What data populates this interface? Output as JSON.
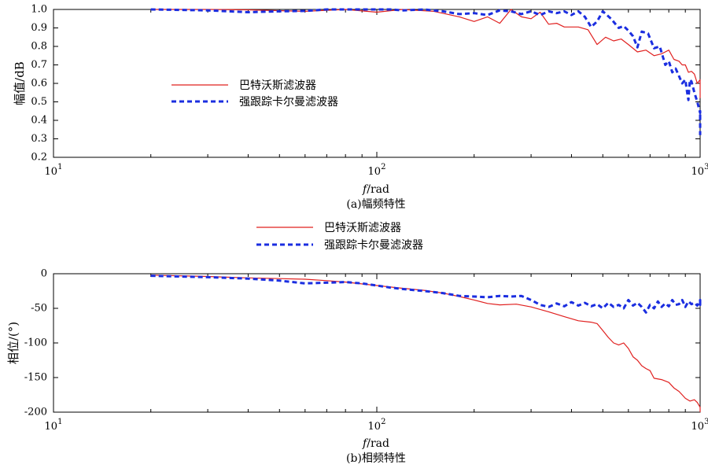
{
  "chart_data": [
    {
      "type": "line",
      "caption": "(a)幅频特性",
      "xlabel_italic": "f",
      "xlabel_unit": "/rad",
      "ylabel": "幅值/dB",
      "xscale": "log",
      "xlim": [
        10,
        1000
      ],
      "ylim": [
        0.2,
        1.0
      ],
      "xticks": [
        {
          "base": "10",
          "exp": "1"
        },
        {
          "base": "10",
          "exp": "2"
        },
        {
          "base": "10",
          "exp": "3"
        }
      ],
      "yticks": [
        "1.0",
        "0.9",
        "0.8",
        "0.7",
        "0.6",
        "0.5",
        "0.4",
        "0.3",
        "0.2"
      ],
      "legend_position": "center-left",
      "series": [
        {
          "name": "巴特沃斯滤波器",
          "color": "#e0201f",
          "style": "solid",
          "points": [
            [
              20,
              1.0
            ],
            [
              30,
              1.0
            ],
            [
              40,
              0.998
            ],
            [
              60,
              0.99
            ],
            [
              80,
              1.005
            ],
            [
              100,
              0.985
            ],
            [
              120,
              1.005
            ],
            [
              150,
              0.99
            ],
            [
              180,
              0.96
            ],
            [
              200,
              0.935
            ],
            [
              220,
              0.96
            ],
            [
              240,
              0.925
            ],
            [
              260,
              1.0
            ],
            [
              280,
              0.96
            ],
            [
              300,
              0.95
            ],
            [
              320,
              0.985
            ],
            [
              340,
              0.92
            ],
            [
              360,
              0.925
            ],
            [
              380,
              0.905
            ],
            [
              420,
              0.905
            ],
            [
              450,
              0.89
            ],
            [
              480,
              0.81
            ],
            [
              510,
              0.85
            ],
            [
              540,
              0.83
            ],
            [
              570,
              0.84
            ],
            [
              600,
              0.81
            ],
            [
              640,
              0.77
            ],
            [
              680,
              0.78
            ],
            [
              720,
              0.75
            ],
            [
              760,
              0.76
            ],
            [
              800,
              0.78
            ],
            [
              830,
              0.73
            ],
            [
              860,
              0.72
            ],
            [
              880,
              0.7
            ],
            [
              900,
              0.7
            ],
            [
              920,
              0.66
            ],
            [
              940,
              0.665
            ],
            [
              960,
              0.65
            ],
            [
              980,
              0.6
            ],
            [
              1000,
              0.62
            ],
            [
              1010,
              0.58
            ],
            [
              1030,
              0.6
            ],
            [
              1060,
              0.56
            ],
            [
              1080,
              0.62
            ],
            [
              1100,
              0.58
            ],
            [
              1130,
              0.6
            ],
            [
              1160,
              0.52
            ]
          ]
        },
        {
          "name": "强跟踪卡尔曼滤波器",
          "color": "#1b2ee0",
          "style": "dashed",
          "points": [
            [
              20,
              1.0
            ],
            [
              30,
              0.995
            ],
            [
              40,
              0.985
            ],
            [
              50,
              0.99
            ],
            [
              60,
              0.992
            ],
            [
              70,
              1.005
            ],
            [
              80,
              1.01
            ],
            [
              90,
              1.02
            ],
            [
              100,
              1.025
            ],
            [
              110,
              1.0
            ],
            [
              120,
              0.995
            ],
            [
              140,
              1.005
            ],
            [
              160,
              0.99
            ],
            [
              180,
              0.975
            ],
            [
              200,
              0.98
            ],
            [
              220,
              0.97
            ],
            [
              240,
              0.995
            ],
            [
              260,
              0.99
            ],
            [
              280,
              0.975
            ],
            [
              300,
              0.99
            ],
            [
              320,
              0.97
            ],
            [
              340,
              0.99
            ],
            [
              360,
              0.98
            ],
            [
              380,
              0.99
            ],
            [
              400,
              0.97
            ],
            [
              420,
              0.99
            ],
            [
              440,
              0.96
            ],
            [
              460,
              0.905
            ],
            [
              480,
              0.935
            ],
            [
              500,
              0.99
            ],
            [
              530,
              0.95
            ],
            [
              560,
              0.9
            ],
            [
              580,
              0.91
            ],
            [
              600,
              0.885
            ],
            [
              620,
              0.855
            ],
            [
              640,
              0.795
            ],
            [
              660,
              0.88
            ],
            [
              690,
              0.87
            ],
            [
              720,
              0.79
            ],
            [
              750,
              0.8
            ],
            [
              780,
              0.7
            ],
            [
              800,
              0.72
            ],
            [
              820,
              0.66
            ],
            [
              840,
              0.68
            ],
            [
              860,
              0.64
            ],
            [
              880,
              0.6
            ],
            [
              900,
              0.62
            ],
            [
              910,
              0.56
            ],
            [
              920,
              0.51
            ],
            [
              930,
              0.62
            ],
            [
              940,
              0.61
            ],
            [
              960,
              0.55
            ],
            [
              980,
              0.5
            ],
            [
              1000,
              0.44
            ],
            [
              1020,
              0.45
            ],
            [
              1050,
              0.41
            ],
            [
              1070,
              0.43
            ],
            [
              1090,
              0.42
            ],
            [
              1110,
              0.4
            ],
            [
              1130,
              0.42
            ],
            [
              1160,
              0.32
            ]
          ]
        }
      ]
    },
    {
      "type": "line",
      "caption": "(b)相频特性",
      "xlabel_italic": "f",
      "xlabel_unit": "/rad",
      "ylabel": "相位/(°)",
      "xscale": "log",
      "xlim": [
        10,
        1000
      ],
      "ylim": [
        -200,
        0
      ],
      "xticks": [
        {
          "base": "10",
          "exp": "1"
        },
        {
          "base": "10",
          "exp": "2"
        },
        {
          "base": "10",
          "exp": "3"
        }
      ],
      "yticks": [
        "0",
        "-50",
        "-100",
        "-150",
        "-200"
      ],
      "legend_position": "top-center",
      "series": [
        {
          "name": "巴特沃斯滤波器",
          "color": "#e0201f",
          "style": "solid",
          "points": [
            [
              20,
              -2
            ],
            [
              30,
              -4
            ],
            [
              40,
              -6
            ],
            [
              50,
              -7
            ],
            [
              60,
              -8
            ],
            [
              70,
              -10
            ],
            [
              80,
              -12
            ],
            [
              100,
              -17
            ],
            [
              120,
              -21
            ],
            [
              140,
              -24
            ],
            [
              160,
              -28
            ],
            [
              180,
              -33
            ],
            [
              200,
              -38
            ],
            [
              220,
              -43
            ],
            [
              240,
              -45
            ],
            [
              270,
              -44
            ],
            [
              300,
              -48
            ],
            [
              340,
              -55
            ],
            [
              380,
              -62
            ],
            [
              420,
              -68
            ],
            [
              460,
              -70
            ],
            [
              480,
              -72
            ],
            [
              500,
              -82
            ],
            [
              520,
              -92
            ],
            [
              540,
              -100
            ],
            [
              560,
              -103
            ],
            [
              580,
              -100
            ],
            [
              600,
              -108
            ],
            [
              620,
              -120
            ],
            [
              640,
              -125
            ],
            [
              660,
              -133
            ],
            [
              680,
              -137
            ],
            [
              700,
              -140
            ],
            [
              720,
              -151
            ],
            [
              760,
              -153
            ],
            [
              800,
              -157
            ],
            [
              830,
              -165
            ],
            [
              860,
              -170
            ],
            [
              880,
              -175
            ],
            [
              900,
              -180
            ],
            [
              930,
              -184
            ],
            [
              960,
              -182
            ],
            [
              980,
              -186
            ],
            [
              1000,
              -193
            ],
            [
              1020,
              -198
            ],
            [
              1050,
              -195
            ],
            [
              1080,
              -202
            ]
          ]
        },
        {
          "name": "强跟踪卡尔曼滤波器",
          "color": "#1b2ee0",
          "style": "dashed",
          "points": [
            [
              20,
              -3
            ],
            [
              30,
              -5
            ],
            [
              40,
              -7
            ],
            [
              50,
              -10
            ],
            [
              60,
              -14
            ],
            [
              70,
              -13
            ],
            [
              80,
              -12
            ],
            [
              90,
              -14
            ],
            [
              100,
              -17
            ],
            [
              110,
              -20
            ],
            [
              120,
              -22
            ],
            [
              140,
              -25
            ],
            [
              160,
              -28
            ],
            [
              180,
              -32
            ],
            [
              200,
              -33
            ],
            [
              220,
              -34
            ],
            [
              240,
              -32
            ],
            [
              260,
              -33
            ],
            [
              280,
              -32
            ],
            [
              300,
              -38
            ],
            [
              320,
              -45
            ],
            [
              340,
              -48
            ],
            [
              360,
              -43
            ],
            [
              380,
              -47
            ],
            [
              400,
              -41
            ],
            [
              420,
              -46
            ],
            [
              440,
              -42
            ],
            [
              460,
              -47
            ],
            [
              480,
              -44
            ],
            [
              500,
              -50
            ],
            [
              520,
              -42
            ],
            [
              540,
              -48
            ],
            [
              560,
              -45
            ],
            [
              580,
              -50
            ],
            [
              600,
              -38
            ],
            [
              620,
              -46
            ],
            [
              640,
              -42
            ],
            [
              660,
              -48
            ],
            [
              680,
              -56
            ],
            [
              700,
              -45
            ],
            [
              720,
              -50
            ],
            [
              740,
              -40
            ],
            [
              760,
              -48
            ],
            [
              780,
              -43
            ],
            [
              800,
              -47
            ],
            [
              820,
              -38
            ],
            [
              840,
              -45
            ],
            [
              860,
              -44
            ],
            [
              880,
              -38
            ],
            [
              900,
              -48
            ],
            [
              920,
              -40
            ],
            [
              940,
              -44
            ],
            [
              960,
              -42
            ],
            [
              980,
              -46
            ],
            [
              1000,
              -38
            ],
            [
              1020,
              -42
            ],
            [
              1040,
              -39
            ],
            [
              1060,
              -45
            ],
            [
              1080,
              -38
            ]
          ]
        }
      ]
    }
  ]
}
